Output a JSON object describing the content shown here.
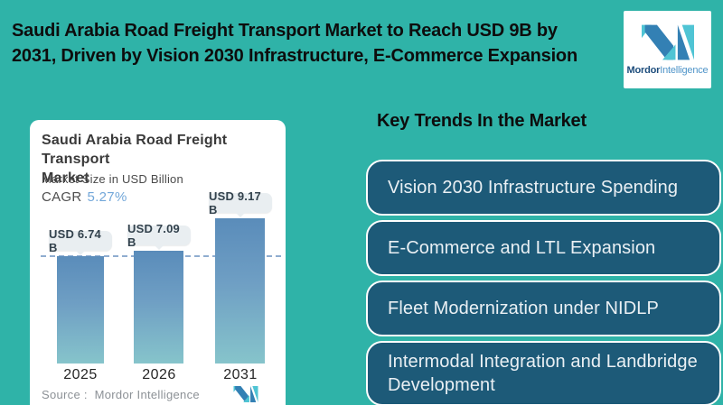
{
  "colors": {
    "background": "#2fb3a8",
    "headline_text": "#0d0d0d",
    "chart_card_bg": "#ffffff",
    "trend_card_bg": "#1d5a78",
    "trend_card_border": "#ffffff",
    "trend_text": "#eaf0f4",
    "bar_gradient_top": "#5a8cba",
    "bar_gradient_bottom": "#86c4cb",
    "value_pill_bg": "#e9eef1",
    "value_pill_text": "#33424d",
    "dashed_reference_line": "#8fadd0",
    "cagr_value_text": "#72a7d9",
    "source_text": "#8c9196",
    "logo_blue": "#3380b4",
    "logo_teal": "#4fc4d4",
    "brand_bold_text": "#1d4d7c",
    "brand_light_text": "#4f94c8"
  },
  "header": {
    "title": "Saudi Arabia Road Freight Transport Market to Reach USD 9B by\n2031, Driven by Vision 2030 Infrastructure, E-Commerce Expansion",
    "logo": {
      "brand_bold": "Mordor",
      "brand_light": "Intelligence"
    }
  },
  "chart_card": {
    "title": "Saudi Arabia Road Freight Transport\nMarket",
    "subtitle": "Market Size in USD Billion",
    "cagr_label": "CAGR",
    "cagr_value": "5.27%",
    "source": "Source :  Mordor Intelligence"
  },
  "chart_data": {
    "type": "bar",
    "title": "Saudi Arabia Road Freight Transport Market",
    "subtitle": "Market Size in USD Billion",
    "cagr_percent": 5.27,
    "categories": [
      "2025",
      "2026",
      "2031"
    ],
    "values": [
      6.74,
      7.09,
      9.17
    ],
    "value_labels": [
      "USD 6.74 B",
      "USD 7.09 B",
      "USD 9.17 B"
    ],
    "unit": "USD Billion",
    "ylim": [
      0,
      10
    ],
    "reference_line_value": 6.74,
    "grid": false,
    "legend": false,
    "source": "Mordor Intelligence"
  },
  "trends": {
    "heading": "Key Trends In the Market",
    "items": [
      "Vision 2030 Infrastructure Spending",
      "E-Commerce and LTL Expansion",
      "Fleet Modernization under NIDLP",
      "Intermodal Integration and Landbridge Development"
    ]
  }
}
